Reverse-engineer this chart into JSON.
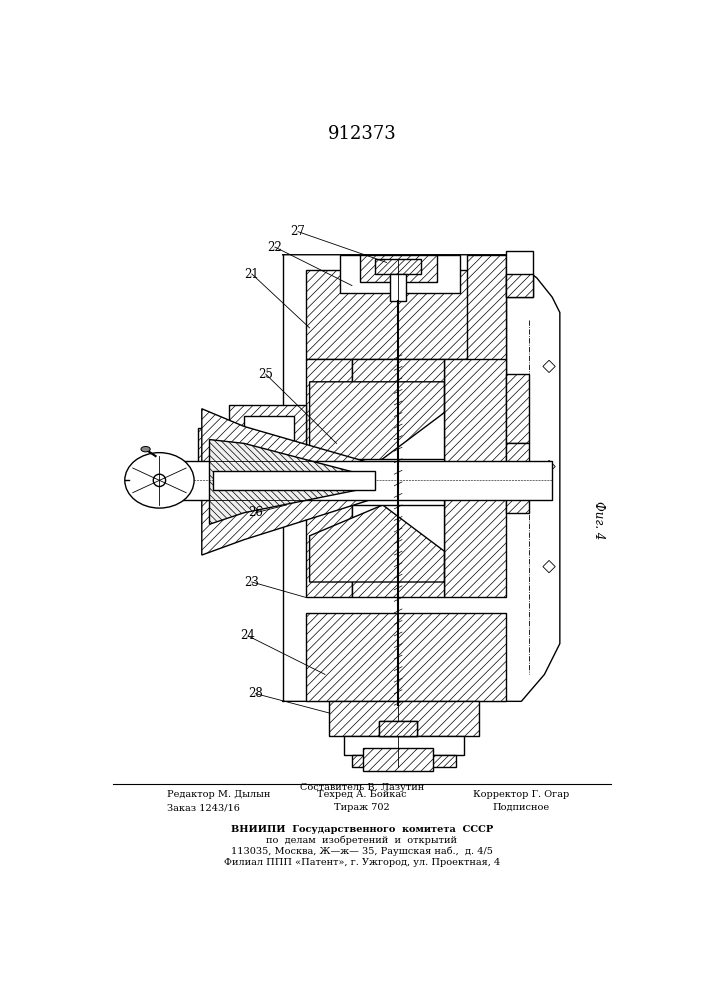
{
  "patent_number": "912373",
  "figure_label": "Фиг. 4",
  "background_color": "#ffffff",
  "line_color": "#000000",
  "footer_col1": [
    "Редактор М. Дылын",
    "Заказ 1243/16"
  ],
  "footer_col2_top": "Составитель В. Лазутин",
  "footer_col2": [
    "Техред А. Бойкас",
    "Тираж 702"
  ],
  "footer_col3": [
    "Корректор Г. Огар",
    "Подписное"
  ],
  "vnipi_text": [
    "ВНИИПИ  Государственного  комитета  СССР",
    "по  делам  изобретений  и  открытий",
    "113035, Москва, Ж—ж— 35, Раушская наб.,  д. 4/5",
    "Филиал ППП «Патент», г. Ужгород, ул. Проектная, 4"
  ]
}
